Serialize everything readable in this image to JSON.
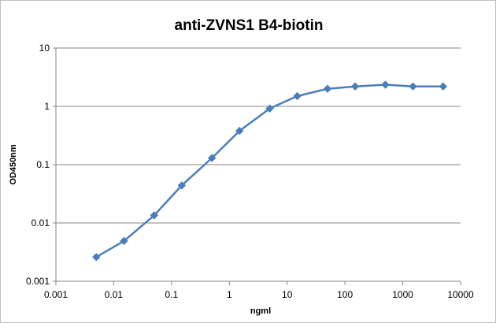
{
  "chart_data": {
    "type": "line",
    "title": "anti-ZVNS1 B4-biotin",
    "xlabel": "ngml",
    "ylabel": "OD450nm",
    "x_scale": "log",
    "y_scale": "log",
    "xlim": [
      0.001,
      10000
    ],
    "ylim": [
      0.001,
      10
    ],
    "x_ticks": [
      "0.001",
      "0.01",
      "0.1",
      "1",
      "10",
      "100",
      "1000",
      "10000"
    ],
    "y_ticks": [
      "0.001",
      "0.01",
      "0.1",
      "1",
      "10"
    ],
    "grid": {
      "horizontal": true,
      "vertical": false
    },
    "legend": "none",
    "series": [
      {
        "color": "#4a7ebb",
        "marker": "diamond",
        "x": [
          0.005,
          0.015,
          0.05,
          0.15,
          0.5,
          1.5,
          5,
          15,
          50,
          150,
          500,
          1500,
          5000
        ],
        "y": [
          0.0026,
          0.0049,
          0.0135,
          0.044,
          0.13,
          0.38,
          0.92,
          1.5,
          2.0,
          2.2,
          2.35,
          2.2,
          2.2
        ]
      }
    ]
  }
}
